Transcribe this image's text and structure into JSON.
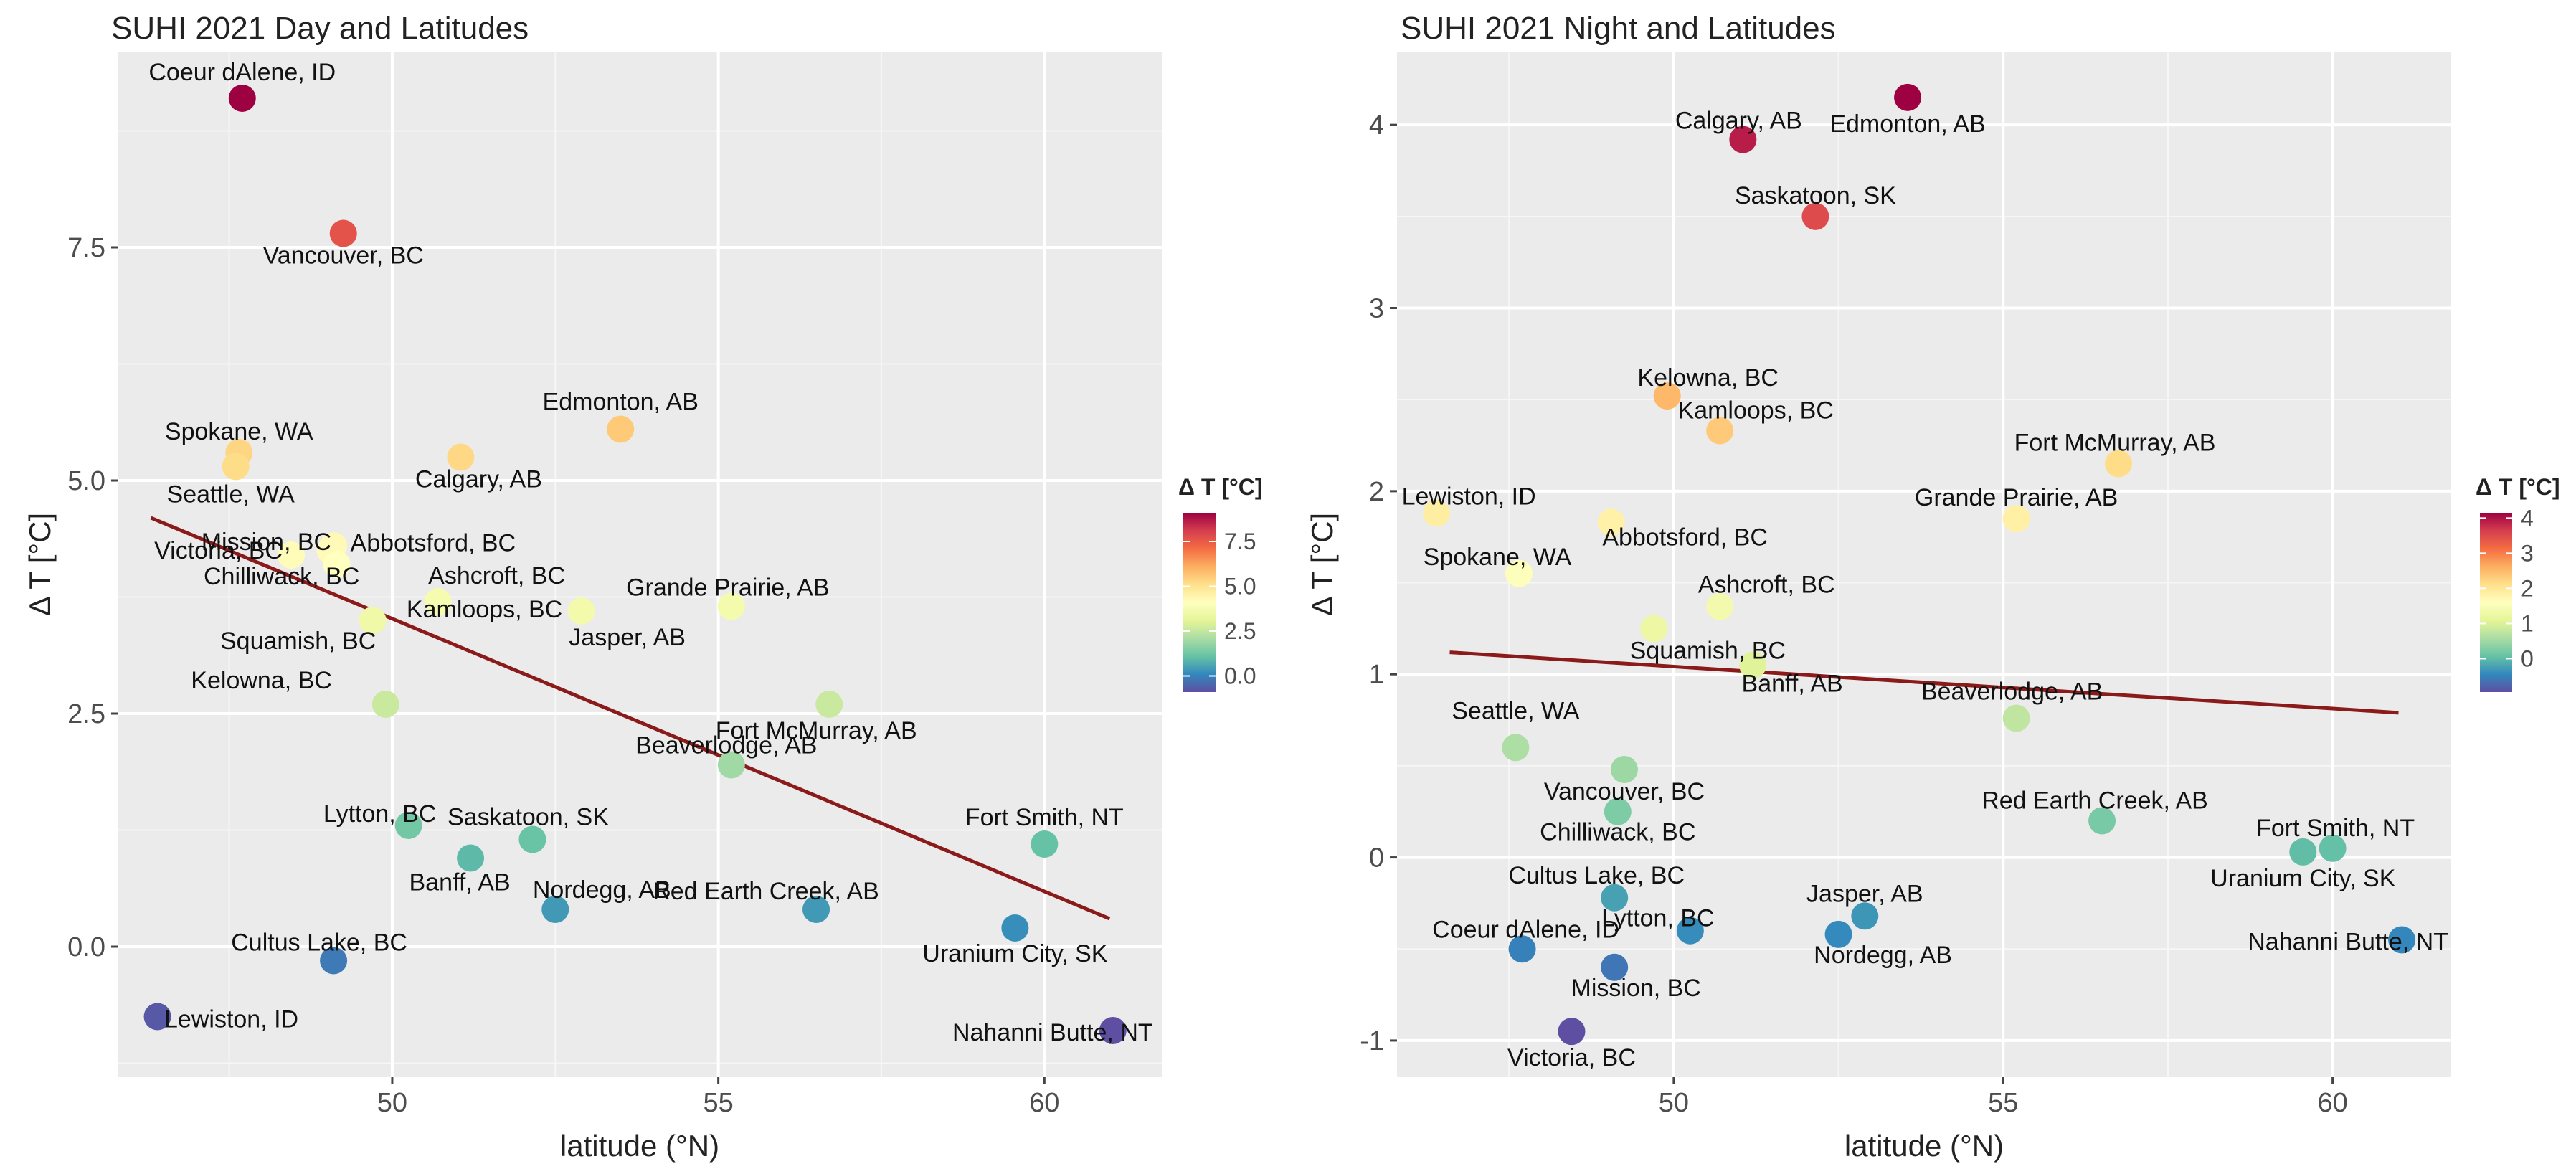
{
  "chart_data": [
    {
      "type": "scatter",
      "title": "SUHI 2021 Day and Latitudes",
      "xlabel": "latitude (°N)",
      "ylabel": "Δ T [°C]",
      "xlim": [
        45.8,
        61.8
      ],
      "ylim": [
        -1.4,
        9.6
      ],
      "x_ticks": [
        50,
        55,
        60
      ],
      "y_ticks": [
        0.0,
        2.5,
        5.0,
        7.5
      ],
      "y_tick_labels": [
        "0.0",
        "2.5",
        "5.0",
        "7.5"
      ],
      "legend": {
        "title": "Δ T [°C]",
        "placement": "right",
        "range": [
          -0.9,
          9.1
        ],
        "ticks": [
          0.0,
          2.5,
          5.0,
          7.5
        ],
        "tick_labels": [
          "0.0",
          "2.5",
          "5.0",
          "7.5"
        ]
      },
      "trend_line": {
        "x": [
          46.3,
          61.0
        ],
        "y": [
          4.6,
          0.3
        ],
        "color": "#8b1a1a"
      },
      "points": [
        {
          "label": "Coeur dAlene, ID",
          "x": 47.7,
          "y": 9.1
        },
        {
          "label": "Vancouver, BC",
          "x": 49.25,
          "y": 7.65
        },
        {
          "label": "Spokane, WA",
          "x": 47.65,
          "y": 5.3
        },
        {
          "label": "Seattle, WA",
          "x": 47.6,
          "y": 5.15
        },
        {
          "label": "Edmonton, AB",
          "x": 53.5,
          "y": 5.55
        },
        {
          "label": "Calgary, AB",
          "x": 51.05,
          "y": 5.25
        },
        {
          "label": "Mission, BC",
          "x": 49.1,
          "y": 4.3
        },
        {
          "label": "Abbotsford, BC",
          "x": 49.05,
          "y": 4.25
        },
        {
          "label": "Victoria, BC",
          "x": 48.45,
          "y": 4.2
        },
        {
          "label": "Chilliwack, BC",
          "x": 49.15,
          "y": 4.1
        },
        {
          "label": "Ashcroft, BC",
          "x": 50.7,
          "y": 3.7
        },
        {
          "label": "Squamish, BC",
          "x": 49.7,
          "y": 3.5
        },
        {
          "label": "Kamloops, BC",
          "x": 50.7,
          "y": 3.7
        },
        {
          "label": "Jasper, AB",
          "x": 52.9,
          "y": 3.6
        },
        {
          "label": "Grande Prairie, AB",
          "x": 55.2,
          "y": 3.65
        },
        {
          "label": "Kelowna, BC",
          "x": 49.9,
          "y": 2.6
        },
        {
          "label": "Fort McMurray, AB",
          "x": 56.7,
          "y": 2.6
        },
        {
          "label": "Beaverlodge, AB",
          "x": 55.2,
          "y": 1.95
        },
        {
          "label": "Lytton, BC",
          "x": 50.25,
          "y": 1.3
        },
        {
          "label": "Saskatoon, SK",
          "x": 52.15,
          "y": 1.15
        },
        {
          "label": "Banff, AB",
          "x": 51.2,
          "y": 0.95
        },
        {
          "label": "Nordegg, AB",
          "x": 52.5,
          "y": 0.4
        },
        {
          "label": "Red Earth Creek, AB",
          "x": 56.5,
          "y": 0.4
        },
        {
          "label": "Fort Smith, NT",
          "x": 60.0,
          "y": 1.1
        },
        {
          "label": "Uranium City, SK",
          "x": 59.55,
          "y": 0.2
        },
        {
          "label": "Cultus Lake, BC",
          "x": 49.1,
          "y": -0.15
        },
        {
          "label": "Lewiston, ID",
          "x": 46.4,
          "y": -0.75
        },
        {
          "label": "Nahanni Butte, NT",
          "x": 61.05,
          "y": -0.9
        }
      ]
    },
    {
      "type": "scatter",
      "title": "SUHI 2021 Night and Latitudes",
      "xlabel": "latitude (°N)",
      "ylabel": "Δ T [°C]",
      "xlim": [
        45.8,
        61.8
      ],
      "ylim": [
        -1.2,
        4.4
      ],
      "x_ticks": [
        50,
        55,
        60
      ],
      "y_ticks": [
        -1,
        0,
        1,
        2,
        3,
        4
      ],
      "y_tick_labels": [
        "-1",
        "0",
        "1",
        "2",
        "3",
        "4"
      ],
      "legend": {
        "title": "Δ T [°C]",
        "placement": "right",
        "range": [
          -0.95,
          4.15
        ],
        "ticks": [
          0,
          1,
          2,
          3,
          4
        ],
        "tick_labels": [
          "0",
          "1",
          "2",
          "3",
          "4"
        ]
      },
      "trend_line": {
        "x": [
          46.6,
          61.0
        ],
        "y": [
          1.12,
          0.79
        ],
        "color": "#8b1a1a"
      },
      "points": [
        {
          "label": "Edmonton, AB",
          "x": 53.55,
          "y": 4.15
        },
        {
          "label": "Calgary, AB",
          "x": 51.05,
          "y": 3.92
        },
        {
          "label": "Saskatoon, SK",
          "x": 52.15,
          "y": 3.5
        },
        {
          "label": "Kelowna, BC",
          "x": 49.9,
          "y": 2.52
        },
        {
          "label": "Kamloops, BC",
          "x": 50.7,
          "y": 2.33
        },
        {
          "label": "Fort McMurray, AB",
          "x": 56.75,
          "y": 2.15
        },
        {
          "label": "Lewiston, ID",
          "x": 46.4,
          "y": 1.88
        },
        {
          "label": "Grande Prairie, AB",
          "x": 55.2,
          "y": 1.85
        },
        {
          "label": "Abbotsford, BC",
          "x": 49.05,
          "y": 1.83
        },
        {
          "label": "Spokane, WA",
          "x": 47.65,
          "y": 1.55
        },
        {
          "label": "Ashcroft, BC",
          "x": 50.7,
          "y": 1.37
        },
        {
          "label": "Squamish, BC",
          "x": 49.7,
          "y": 1.25
        },
        {
          "label": "Banff, AB",
          "x": 51.2,
          "y": 1.05
        },
        {
          "label": "Beaverlodge, AB",
          "x": 55.2,
          "y": 0.76
        },
        {
          "label": "Seattle, WA",
          "x": 47.6,
          "y": 0.6
        },
        {
          "label": "Vancouver, BC",
          "x": 49.25,
          "y": 0.48
        },
        {
          "label": "Chilliwack, BC",
          "x": 49.15,
          "y": 0.25
        },
        {
          "label": "Red Earth Creek, AB",
          "x": 56.5,
          "y": 0.2
        },
        {
          "label": "Fort Smith, NT",
          "x": 60.0,
          "y": 0.05
        },
        {
          "label": "Uranium City, SK",
          "x": 59.55,
          "y": 0.03
        },
        {
          "label": "Cultus Lake, BC",
          "x": 49.1,
          "y": -0.22
        },
        {
          "label": "Jasper, AB",
          "x": 52.9,
          "y": -0.32
        },
        {
          "label": "Lytton, BC",
          "x": 50.25,
          "y": -0.4
        },
        {
          "label": "Nordegg, AB",
          "x": 52.5,
          "y": -0.42
        },
        {
          "label": "Nahanni Butte, NT",
          "x": 61.05,
          "y": -0.45
        },
        {
          "label": "Coeur dAlene, ID",
          "x": 47.7,
          "y": -0.5
        },
        {
          "label": "Mission, BC",
          "x": 49.1,
          "y": -0.6
        },
        {
          "label": "Victoria, BC",
          "x": 48.45,
          "y": -0.95
        }
      ]
    }
  ]
}
